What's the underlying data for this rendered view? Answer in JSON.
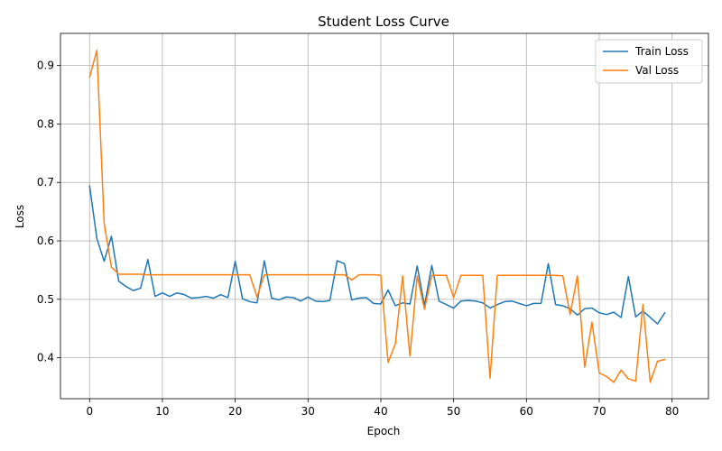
{
  "chart_data": {
    "type": "line",
    "title": "Student Loss Curve",
    "xlabel": "Epoch",
    "ylabel": "Loss",
    "xlim": [
      -4,
      85
    ],
    "ylim": [
      0.33,
      0.955
    ],
    "xticks": [
      0,
      10,
      20,
      30,
      40,
      50,
      60,
      70,
      80
    ],
    "yticks": [
      0.4,
      0.5,
      0.6,
      0.7,
      0.8,
      0.9
    ],
    "grid": true,
    "legend_position": "top-right",
    "series": [
      {
        "name": "Train Loss",
        "color": "#1f77b4",
        "x": [
          0,
          1,
          2,
          3,
          4,
          5,
          6,
          7,
          8,
          9,
          10,
          11,
          12,
          13,
          14,
          15,
          16,
          17,
          18,
          19,
          20,
          21,
          22,
          23,
          24,
          25,
          26,
          27,
          28,
          29,
          30,
          31,
          32,
          33,
          34,
          35,
          36,
          37,
          38,
          39,
          40,
          41,
          42,
          43,
          44,
          45,
          46,
          47,
          48,
          49,
          50,
          51,
          52,
          53,
          54,
          55,
          56,
          57,
          58,
          59,
          60,
          61,
          62,
          63,
          64,
          65,
          66,
          67,
          68,
          69,
          70,
          71,
          72,
          73,
          74,
          75,
          76,
          77,
          78,
          79
        ],
        "values": [
          0.694,
          0.604,
          0.565,
          0.608,
          0.531,
          0.522,
          0.515,
          0.519,
          0.568,
          0.505,
          0.511,
          0.505,
          0.511,
          0.508,
          0.502,
          0.503,
          0.505,
          0.502,
          0.508,
          0.503,
          0.565,
          0.501,
          0.496,
          0.494,
          0.566,
          0.502,
          0.499,
          0.504,
          0.503,
          0.497,
          0.504,
          0.497,
          0.496,
          0.498,
          0.566,
          0.561,
          0.499,
          0.502,
          0.503,
          0.493,
          0.492,
          0.516,
          0.489,
          0.494,
          0.492,
          0.557,
          0.489,
          0.558,
          0.497,
          0.491,
          0.485,
          0.497,
          0.498,
          0.497,
          0.494,
          0.485,
          0.491,
          0.496,
          0.497,
          0.493,
          0.489,
          0.493,
          0.493,
          0.561,
          0.491,
          0.489,
          0.484,
          0.473,
          0.484,
          0.485,
          0.477,
          0.474,
          0.478,
          0.469,
          0.539,
          0.47,
          0.48,
          0.469,
          0.458,
          0.477
        ]
      },
      {
        "name": "Val Loss",
        "color": "#ff7f0e",
        "x": [
          0,
          1,
          2,
          3,
          4,
          5,
          6,
          7,
          8,
          9,
          10,
          11,
          12,
          13,
          14,
          15,
          16,
          17,
          18,
          19,
          20,
          21,
          22,
          23,
          24,
          25,
          26,
          27,
          28,
          29,
          30,
          31,
          32,
          33,
          34,
          35,
          36,
          37,
          38,
          39,
          40,
          41,
          42,
          43,
          44,
          45,
          46,
          47,
          48,
          49,
          50,
          51,
          52,
          53,
          54,
          55,
          56,
          57,
          58,
          59,
          60,
          61,
          62,
          63,
          64,
          65,
          66,
          67,
          68,
          69,
          70,
          71,
          72,
          73,
          74,
          75,
          76,
          77,
          78,
          79
        ],
        "values": [
          0.88,
          0.926,
          0.63,
          0.555,
          0.543,
          0.543,
          0.543,
          0.543,
          0.542,
          0.542,
          0.542,
          0.542,
          0.542,
          0.542,
          0.542,
          0.542,
          0.542,
          0.542,
          0.542,
          0.542,
          0.542,
          0.542,
          0.542,
          0.504,
          0.542,
          0.542,
          0.542,
          0.542,
          0.542,
          0.542,
          0.542,
          0.542,
          0.542,
          0.542,
          0.542,
          0.542,
          0.533,
          0.542,
          0.542,
          0.542,
          0.541,
          0.392,
          0.424,
          0.54,
          0.403,
          0.54,
          0.483,
          0.541,
          0.541,
          0.541,
          0.503,
          0.541,
          0.541,
          0.541,
          0.541,
          0.365,
          0.541,
          0.541,
          0.541,
          0.541,
          0.541,
          0.541,
          0.541,
          0.541,
          0.541,
          0.54,
          0.474,
          0.54,
          0.384,
          0.461,
          0.374,
          0.368,
          0.358,
          0.379,
          0.364,
          0.36,
          0.491,
          0.358,
          0.394,
          0.397
        ]
      }
    ]
  }
}
